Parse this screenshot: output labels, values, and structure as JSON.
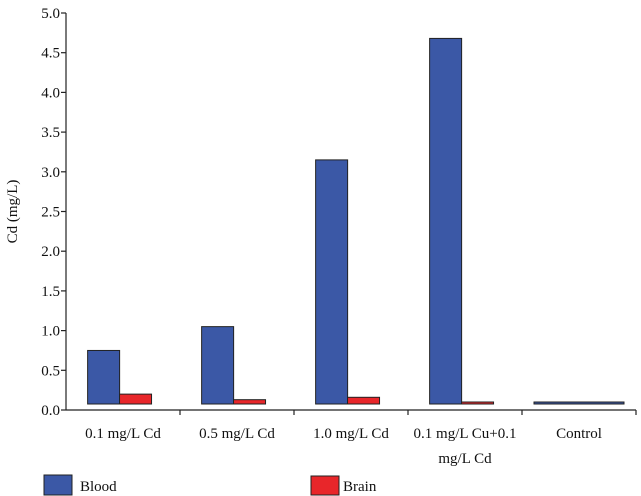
{
  "chart_data": {
    "type": "bar",
    "ylabel": "Cd (mg/L)",
    "ylim": [
      0,
      5.0
    ],
    "yticks": [
      "0.0",
      "0.5",
      "1.0",
      "1.5",
      "2.0",
      "2.5",
      "3.0",
      "3.5",
      "4.0",
      "4.5",
      "5.0"
    ],
    "categories": [
      [
        "0.1 mg/L Cd"
      ],
      [
        "0.5 mg/L Cd"
      ],
      [
        "1.0 mg/L Cd"
      ],
      [
        "0.1 mg/L Cu+0.1",
        "mg/L Cd"
      ],
      [
        "Control"
      ]
    ],
    "series": [
      {
        "name": "Blood",
        "color": "#3b58a6",
        "values": [
          0.75,
          1.05,
          3.15,
          4.68,
          0.03
        ]
      },
      {
        "name": "Brain",
        "color": "#e8262a",
        "values": [
          0.2,
          0.13,
          0.16,
          0.1,
          0
        ]
      }
    ],
    "legend": "bottom"
  }
}
